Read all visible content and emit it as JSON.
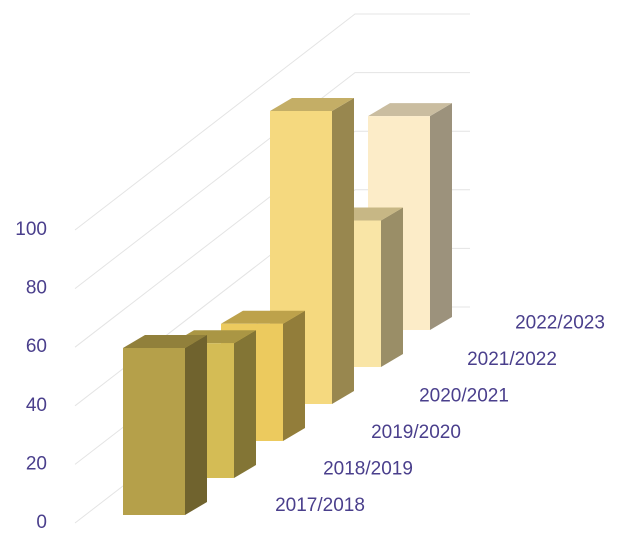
{
  "chart_data": {
    "type": "bar3d",
    "categories": [
      "2017/2018",
      "2018/2019",
      "2019/2020",
      "2020/2021",
      "2021/2022",
      "2022/2023"
    ],
    "values": [
      57,
      46,
      40,
      100,
      50,
      73
    ],
    "colors": [
      "#b5a04a",
      "#d4bc55",
      "#ecca5e",
      "#f5d97f",
      "#f9e5a6",
      "#fcecc8"
    ],
    "ylim": [
      0,
      100
    ],
    "yticks": [
      0,
      20,
      40,
      60,
      80,
      100
    ],
    "grid": true
  }
}
